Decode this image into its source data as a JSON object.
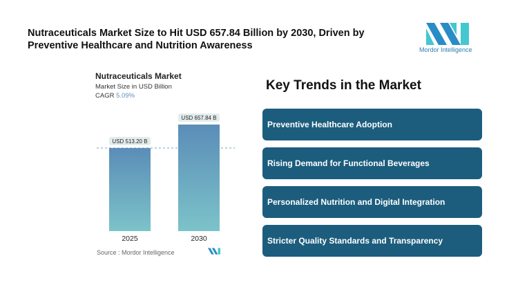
{
  "title": "Nutraceuticals Market Size to Hit USD 657.84 Billion by 2030, Driven by Preventive Healthcare and Nutrition Awareness",
  "logo": {
    "text": "Mordor Intelligence"
  },
  "chart_data": {
    "type": "bar",
    "title": "Nutraceuticals Market",
    "subtitle": "Market Size in USD Billion",
    "cagr_label": "CAGR",
    "cagr_value": "5.09%",
    "categories": [
      "2025",
      "2030"
    ],
    "values": [
      513.2,
      657.84
    ],
    "data_labels": [
      "USD 513.20 B",
      "USD 657.84 B"
    ],
    "grid": false,
    "colors": {
      "top": "#5b8db8",
      "bottom": "#7cc3c9"
    }
  },
  "source": "Source :  Mordor Intelligence",
  "trends": {
    "heading": "Key Trends in the Market",
    "items": [
      "Preventive Healthcare Adoption",
      "Rising Demand for Functional Beverages",
      "Personalized Nutrition and Digital Integration",
      "Stricter Quality Standards and Transparency"
    ],
    "color": "#1c5d7d"
  }
}
